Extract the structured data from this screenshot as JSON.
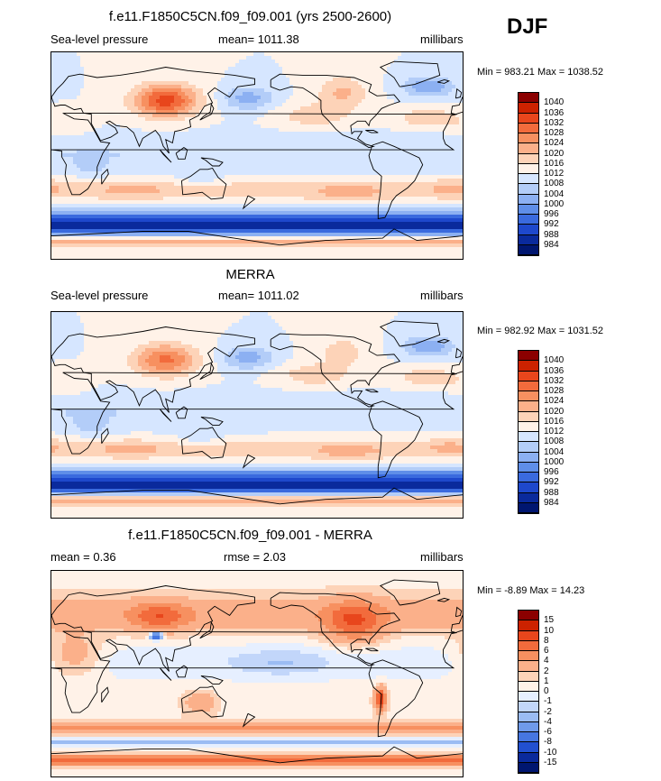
{
  "season": "DJF",
  "panels": [
    {
      "title": "f.e11.F1850C5CN.f09_f09.001 (yrs 2500-2600)",
      "left_label": "Sea-level pressure",
      "center_label": "mean= 1011.38",
      "right_label": "millibars",
      "minmax": "Min = 983.21 Max = 1038.52",
      "kind": "slp",
      "colorbar": {
        "labels": [
          "1040",
          "1036",
          "1032",
          "1028",
          "1024",
          "1020",
          "1016",
          "1012",
          "1008",
          "1004",
          "1000",
          "996",
          "992",
          "988",
          "984"
        ],
        "colors": [
          "#8b0000",
          "#cc2200",
          "#e8461c",
          "#f26b3c",
          "#f79060",
          "#fbb08a",
          "#fdd3b8",
          "#fff2e8",
          "#d6e6ff",
          "#b3cdf8",
          "#8cb0f2",
          "#5f8ee8",
          "#3a6ade",
          "#1e48cc",
          "#0a2a9c",
          "#001670"
        ]
      }
    },
    {
      "title": "MERRA",
      "left_label": "Sea-level pressure",
      "center_label": "mean= 1011.02",
      "right_label": "millibars",
      "minmax": "Min = 982.92 Max = 1031.52",
      "kind": "slp",
      "colorbar": {
        "labels": [
          "1040",
          "1036",
          "1032",
          "1028",
          "1024",
          "1020",
          "1016",
          "1012",
          "1008",
          "1004",
          "1000",
          "996",
          "992",
          "988",
          "984"
        ],
        "colors": [
          "#8b0000",
          "#cc2200",
          "#e8461c",
          "#f26b3c",
          "#f79060",
          "#fbb08a",
          "#fdd3b8",
          "#fff2e8",
          "#d6e6ff",
          "#b3cdf8",
          "#8cb0f2",
          "#5f8ee8",
          "#3a6ade",
          "#1e48cc",
          "#0a2a9c",
          "#001670"
        ]
      }
    },
    {
      "title": "f.e11.F1850C5CN.f09_f09.001 - MERRA",
      "left_label": "mean =   0.36",
      "center_label": "rmse =   2.03",
      "right_label": "millibars",
      "minmax": "Min =  -8.89 Max =  14.23",
      "kind": "diff",
      "colorbar": {
        "labels": [
          "15",
          "10",
          "8",
          "6",
          "4",
          "2",
          "1",
          "0",
          "-1",
          "-2",
          "-4",
          "-6",
          "-8",
          "-10",
          "-15"
        ],
        "colors": [
          "#8b0000",
          "#cc2200",
          "#e8461c",
          "#f26b3c",
          "#f79060",
          "#fbb08a",
          "#fdd3b8",
          "#fff2e8",
          "#e6efff",
          "#c2d6fa",
          "#9bbcf3",
          "#6f9aea",
          "#4676e0",
          "#2250d0",
          "#0a2a9c",
          "#001670"
        ]
      }
    }
  ]
}
